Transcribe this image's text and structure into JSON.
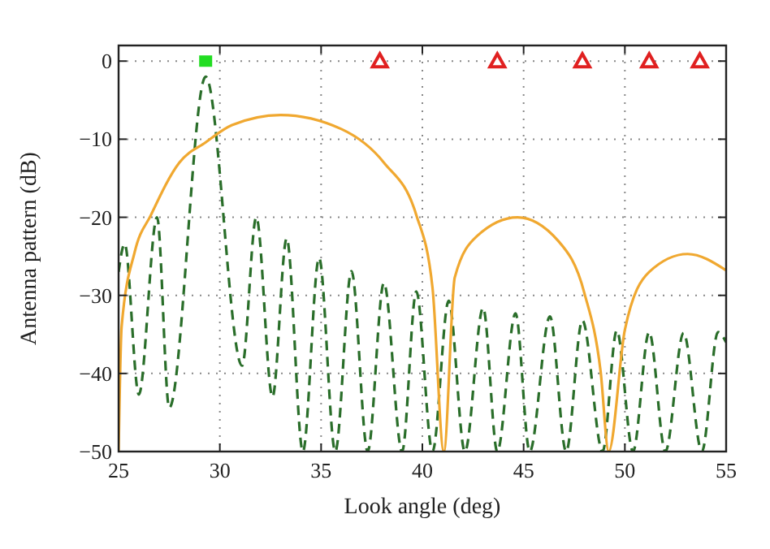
{
  "chart_data": {
    "type": "line",
    "xlabel": "Look angle (deg)",
    "ylabel": "Antenna pattern (dB)",
    "xlim": [
      25,
      55
    ],
    "ylim": [
      -50,
      2
    ],
    "xticks": [
      25,
      30,
      35,
      40,
      45,
      50,
      55
    ],
    "yticks": [
      0,
      {
        "value": -10,
        "label": "−10"
      },
      {
        "value": -20,
        "label": "−20"
      },
      {
        "value": -30,
        "label": "−30"
      },
      {
        "value": -40,
        "label": "−40"
      },
      {
        "value": -50,
        "label": "−50"
      }
    ],
    "grid": true,
    "series": [
      {
        "color": "#2a6e2a",
        "line_style": "dashed",
        "x": [
          25,
          25.3,
          26.0,
          26.9,
          27.5,
          29.3,
          31.1,
          31.8,
          32.6,
          33.3,
          34.1,
          34.9,
          35.7,
          36.5,
          37.3,
          38.1,
          39.0,
          39.7,
          40.5,
          41.3,
          42.1,
          43.0,
          43.7,
          44.6,
          45.3,
          46.3,
          47.1,
          47.9,
          48.9,
          49.6,
          50.4,
          51.2,
          52.0,
          52.9,
          53.8,
          54.6,
          55
        ],
        "values": [
          -27,
          -23.4,
          -42.7,
          -20,
          -44.4,
          -2,
          -39,
          -20,
          -43,
          -22.7,
          -50,
          -25.2,
          -50,
          -26.9,
          -50,
          -28.4,
          -50,
          -29.5,
          -50,
          -30.7,
          -50,
          -31.6,
          -50,
          -32.3,
          -50,
          -32.7,
          -50,
          -33.2,
          -50,
          -34.5,
          -50,
          -34.7,
          -50,
          -34.8,
          -50,
          -34.7,
          -36
        ]
      },
      {
        "color": "#f0a830",
        "line_style": "solid",
        "x": [
          25,
          25.15,
          25.8,
          26.6,
          28.0,
          29.3,
          30.6,
          33.0,
          36.0,
          38.1,
          39.7,
          40.5,
          41.06,
          41.6,
          42.7,
          44.7,
          46.7,
          48.0,
          48.8,
          49.2,
          50.0,
          51.2,
          53.1,
          55
        ],
        "values": [
          -50,
          -34,
          -24.4,
          -19.7,
          -13,
          -10.4,
          -8.2,
          -6.9,
          -8.7,
          -13,
          -19.7,
          -29,
          -50,
          -27.7,
          -22.4,
          -20,
          -23,
          -29.7,
          -39.7,
          -50,
          -34.4,
          -27,
          -24.7,
          -26.8
        ]
      },
      {
        "type": "scatter",
        "color": "#22dd22",
        "marker": "square",
        "x": [
          29.3
        ],
        "values": [
          0
        ]
      },
      {
        "type": "scatter",
        "color": "#e02020",
        "marker": "triangle",
        "x": [
          37.9,
          43.7,
          47.9,
          51.2,
          53.7
        ],
        "values": [
          0,
          0,
          0,
          0,
          0
        ]
      }
    ]
  }
}
